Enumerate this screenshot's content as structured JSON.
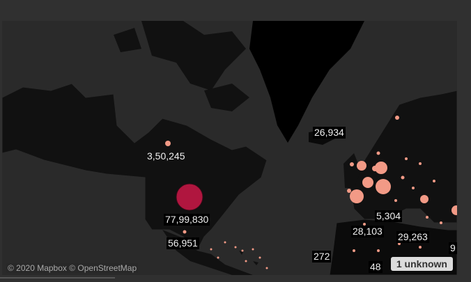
{
  "map": {
    "attribution": "© 2020 Mapbox © OpenStreetMap",
    "unknown_badge": "1 unknown",
    "labels": {
      "canada": "3,50,245",
      "usa": "77,99,830",
      "mexico": "56,951",
      "iceland": "26,934",
      "morocco": "5,304",
      "algeria": "28,103",
      "libya": "29,263",
      "west_africa": "272",
      "sahara": "48",
      "egypt_partial": "9"
    },
    "colors": {
      "background": "#2a2a2a",
      "land": "#111111",
      "bubble_large": "#b0163f",
      "bubble_small": "#f29a86"
    }
  }
}
